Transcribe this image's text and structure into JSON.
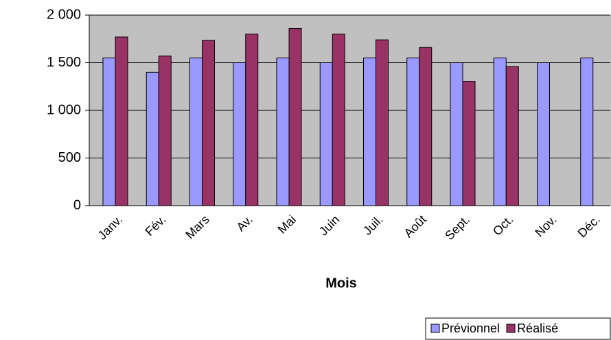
{
  "chart_data": {
    "type": "bar",
    "x_label": "Mois",
    "categories": [
      "Janv.",
      "Fév.",
      "Mars",
      "Av.",
      "Mai",
      "Juin",
      "Juil.",
      "Août",
      "Sept.",
      "Oct.",
      "Nov.",
      "Déc."
    ],
    "series": [
      {
        "name": "Prévionnel",
        "color": "#9999ff",
        "values": [
          1550,
          1400,
          1550,
          1500,
          1550,
          1500,
          1550,
          1550,
          1500,
          1550,
          1500,
          1550
        ]
      },
      {
        "name": "Réalisé",
        "color": "#993366",
        "values": [
          1770,
          1570,
          1735,
          1800,
          1860,
          1800,
          1740,
          1660,
          1305,
          1460,
          null,
          null
        ]
      }
    ],
    "ylim": [
      0,
      2000
    ],
    "yticks": [
      0,
      {
        "value": 500,
        "label": "500"
      },
      {
        "value": 1000,
        "label": "1 000"
      },
      {
        "value": 1500,
        "label": "1 500"
      },
      {
        "value": 2000,
        "label": "2 000"
      }
    ],
    "grid": true,
    "plot_background": "#c0c0c0",
    "legend": "bottom-right"
  }
}
